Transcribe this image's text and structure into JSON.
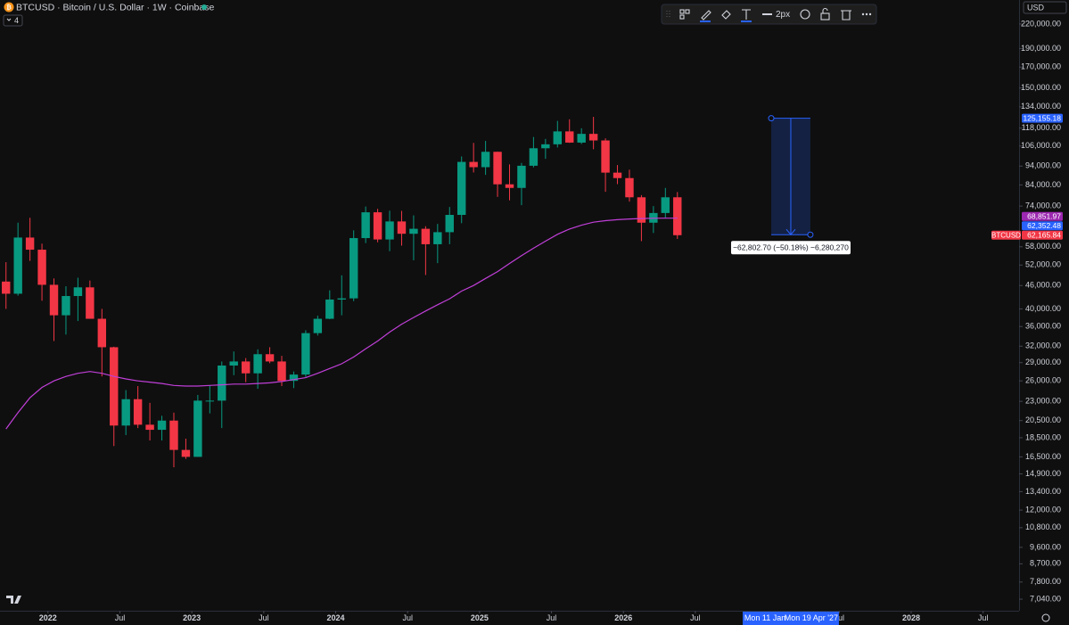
{
  "chart_data": {
    "type": "candlestick",
    "title": "BTCUSD · Bitcoin / U.S. Dollar · 1W · Coinbase",
    "indicator_count": 4,
    "currency": "USD",
    "line_width": "2px",
    "x": [
      "2021-09",
      "2021-10",
      "2021-11",
      "2021-12",
      "2022-01",
      "2022-02",
      "2022-03",
      "2022-04",
      "2022-05",
      "2022-06",
      "2022-07",
      "2022-08",
      "2022-09",
      "2022-10",
      "2022-11",
      "2022-12",
      "2023-01",
      "2023-02",
      "2023-03",
      "2023-04",
      "2023-05",
      "2023-06",
      "2023-07",
      "2023-08",
      "2023-09",
      "2023-10",
      "2023-11",
      "2023-12",
      "2024-01",
      "2024-02",
      "2024-03",
      "2024-04",
      "2024-05",
      "2024-06",
      "2024-07",
      "2024-08",
      "2024-09",
      "2024-10",
      "2024-11",
      "2024-12",
      "2025-01",
      "2025-02",
      "2025-03",
      "2025-04",
      "2025-05",
      "2025-06",
      "2025-07",
      "2025-08",
      "2025-09",
      "2025-10",
      "2025-11",
      "2025-12",
      "2026-01",
      "2026-02",
      "2026-03",
      "2026-04",
      "2026-05"
    ],
    "open": [
      47100,
      43800,
      61300,
      57000,
      46200,
      38500,
      43200,
      45500,
      37700,
      31800,
      19900,
      23300,
      20000,
      19400,
      20500,
      17200,
      16500,
      23100,
      23100,
      28500,
      29200,
      27200,
      30500,
      29200,
      26000,
      27000,
      34600,
      37700,
      42300,
      42600,
      61100,
      71300,
      60600,
      67500,
      62700,
      64600,
      58900,
      63300,
      70200,
      96400,
      93400,
      102400,
      84300,
      82500,
      94200,
      104600,
      107100,
      115700,
      108200,
      114000,
      109600,
      90400,
      87500,
      78000,
      67000,
      71000,
      78000
    ],
    "high": [
      52900,
      67000,
      69000,
      59100,
      48000,
      45800,
      48200,
      47400,
      40000,
      31900,
      24600,
      25200,
      22800,
      21100,
      21500,
      18400,
      23900,
      25300,
      29200,
      31000,
      29800,
      31400,
      31800,
      30200,
      27500,
      35200,
      38400,
      44700,
      48900,
      64000,
      73800,
      72800,
      72000,
      71900,
      70000,
      65600,
      66500,
      73600,
      99600,
      108000,
      109300,
      102500,
      95000,
      95800,
      111900,
      110600,
      123200,
      124400,
      117900,
      126200,
      111000,
      94600,
      92000,
      79000,
      74000,
      82500,
      80500
    ],
    "low": [
      40000,
      43300,
      53300,
      42000,
      33000,
      34300,
      37200,
      37700,
      26700,
      17600,
      18800,
      19600,
      18200,
      18200,
      15500,
      16300,
      16500,
      21400,
      19600,
      26900,
      25800,
      24800,
      28900,
      25200,
      24900,
      26600,
      34100,
      37600,
      38500,
      41900,
      59300,
      59600,
      56500,
      58400,
      53500,
      49000,
      52600,
      58900,
      66800,
      90500,
      89200,
      78200,
      76600,
      74400,
      93300,
      98200,
      105100,
      108000,
      107300,
      104000,
      80600,
      84400,
      76000,
      60000,
      63000,
      69000,
      60800
    ],
    "close": [
      43800,
      61300,
      57000,
      46200,
      38500,
      43200,
      45500,
      37700,
      31800,
      19900,
      23300,
      20000,
      19400,
      20500,
      17200,
      16500,
      23100,
      23100,
      28500,
      29200,
      27200,
      30500,
      29200,
      26000,
      27000,
      34600,
      37700,
      42300,
      42600,
      61100,
      71300,
      60600,
      67500,
      62700,
      64600,
      58900,
      63300,
      70200,
      96400,
      93400,
      102400,
      84300,
      82500,
      94200,
      104600,
      107100,
      115700,
      108200,
      114000,
      109600,
      90400,
      87500,
      78000,
      67000,
      71000,
      78000,
      62165.84
    ],
    "up_color": "#089981",
    "down_color": "#f23645",
    "ma": {
      "color": "#c03fd8",
      "values": [
        19500,
        21500,
        23500,
        25000,
        26000,
        26700,
        27200,
        27500,
        27200,
        26700,
        26300,
        26000,
        25800,
        25600,
        25300,
        25200,
        25200,
        25300,
        25400,
        25500,
        25500,
        25600,
        25700,
        25900,
        26200,
        26500,
        27200,
        28000,
        28800,
        30000,
        31500,
        33000,
        34800,
        36500,
        38000,
        39500,
        41000,
        42500,
        44500,
        46000,
        48000,
        50000,
        52500,
        55000,
        57500,
        60000,
        62500,
        64500,
        66000,
        67200,
        67800,
        68200,
        68500,
        68700,
        68800,
        68850,
        68851.97
      ]
    },
    "log_scale": true,
    "ylim": [
      6570,
      254000
    ],
    "yticks": [
      {
        "value": 220000,
        "label": "220,000.00"
      },
      {
        "value": 190000,
        "label": "190,000.00"
      },
      {
        "value": 170000,
        "label": "170,000.00"
      },
      {
        "value": 150000,
        "label": "150,000.00"
      },
      {
        "value": 134000,
        "label": "134,000.00"
      },
      {
        "value": 118000,
        "label": "118,000.00"
      },
      {
        "value": 106000,
        "label": "106,000.00"
      },
      {
        "value": 94000,
        "label": "94,000.00"
      },
      {
        "value": 84000,
        "label": "84,000.00"
      },
      {
        "value": 74000,
        "label": "74,000.00"
      },
      {
        "value": 58000,
        "label": "58,000.00"
      },
      {
        "value": 52000,
        "label": "52,000.00"
      },
      {
        "value": 46000,
        "label": "46,000.00"
      },
      {
        "value": 40000,
        "label": "40,000.00"
      },
      {
        "value": 36000,
        "label": "36,000.00"
      },
      {
        "value": 32000,
        "label": "32,000.00"
      },
      {
        "value": 29000,
        "label": "29,000.00"
      },
      {
        "value": 26000,
        "label": "26,000.00"
      },
      {
        "value": 23000,
        "label": "23,000.00"
      },
      {
        "value": 20500,
        "label": "20,500.00"
      },
      {
        "value": 18500,
        "label": "18,500.00"
      },
      {
        "value": 16500,
        "label": "16,500.00"
      },
      {
        "value": 14900,
        "label": "14,900.00"
      },
      {
        "value": 13400,
        "label": "13,400.00"
      },
      {
        "value": 12000,
        "label": "12,000.00"
      },
      {
        "value": 10800,
        "label": "10,800.00"
      },
      {
        "value": 9600,
        "label": "9,600.00"
      },
      {
        "value": 8700,
        "label": "8,700.00"
      },
      {
        "value": 7800,
        "label": "7,800.00"
      },
      {
        "value": 7040,
        "label": "7,040.00"
      }
    ],
    "xlim": [
      "2021-09",
      "2028-10"
    ],
    "xticks": [
      {
        "value": "2022-01",
        "label": "2022"
      },
      {
        "value": "2022-07",
        "label": "Jul"
      },
      {
        "value": "2023-01",
        "label": "2023"
      },
      {
        "value": "2023-07",
        "label": "Jul"
      },
      {
        "value": "2024-01",
        "label": "2024"
      },
      {
        "value": "2024-07",
        "label": "Jul"
      },
      {
        "value": "2025-01",
        "label": "2025"
      },
      {
        "value": "2025-07",
        "label": "Jul"
      },
      {
        "value": "2026-01",
        "label": "2026"
      },
      {
        "value": "2026-07",
        "label": "Jul"
      },
      {
        "value": "2027-07",
        "label": "Jul"
      },
      {
        "value": "2028-01",
        "label": "2028"
      },
      {
        "value": "2028-07",
        "label": "Jul"
      }
    ],
    "price_tags": [
      {
        "value": 125155.18,
        "label": "125,155.18",
        "color": "#2962ff"
      },
      {
        "value": 68851.97,
        "label": "68,851.97",
        "color": "#9c27b0"
      },
      {
        "value": 62352.48,
        "label": "62,352.48",
        "color": "#2962ff"
      },
      {
        "value": 62165.84,
        "label": "62,165.84",
        "color": "#f23645",
        "name": "BTCUSD"
      }
    ],
    "measure": {
      "start": "2027-01-11",
      "end": "2027-04-19",
      "high": 125155.18,
      "low": 62352.48,
      "label": "−62,802.70 (−50.18%) −6,280,270",
      "start_label": "Mon 11 Jan",
      "end_label": "Mon 19 Apr '27"
    }
  }
}
